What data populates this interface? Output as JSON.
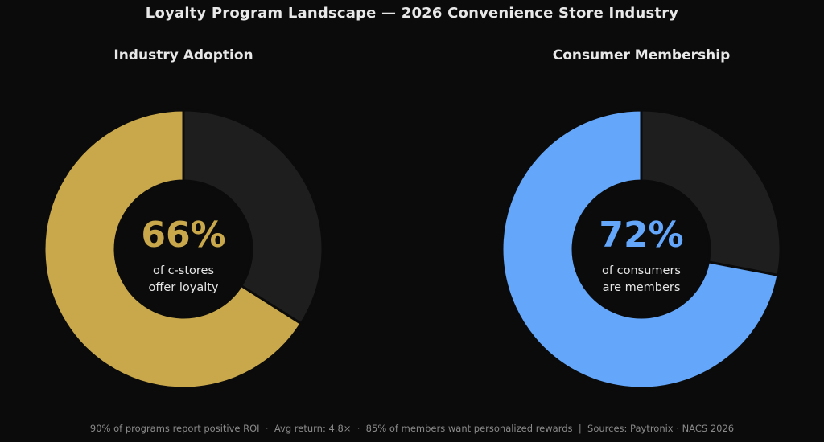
{
  "title": "Loyalty Program Landscape — 2026 Convenience Store Industry",
  "footer": "90% of programs report positive ROI  ·  Avg return: 4.8×  ·  85% of members want personalized rewards  |  Sources: Paytronix · NACS 2026",
  "colors": {
    "background": "#0b0b0b",
    "remainder": "#1e1e1e",
    "separator": "#0b0b0b",
    "industry": "#c9a84c",
    "consumer": "#63a6fa"
  },
  "chart_data": [
    {
      "type": "pie",
      "title": "Industry Adoption",
      "labels": [
        "offer loyalty",
        "remainder"
      ],
      "values": [
        66,
        34
      ],
      "center_value": "66%",
      "center_label_lines": [
        "of c-stores",
        "offer loyalty"
      ],
      "accent_color": "#c9a84c"
    },
    {
      "type": "pie",
      "title": "Consumer Membership",
      "labels": [
        "members",
        "remainder"
      ],
      "values": [
        72,
        28
      ],
      "center_value": "72%",
      "center_label_lines": [
        "of consumers",
        "are members"
      ],
      "accent_color": "#63a6fa"
    }
  ]
}
